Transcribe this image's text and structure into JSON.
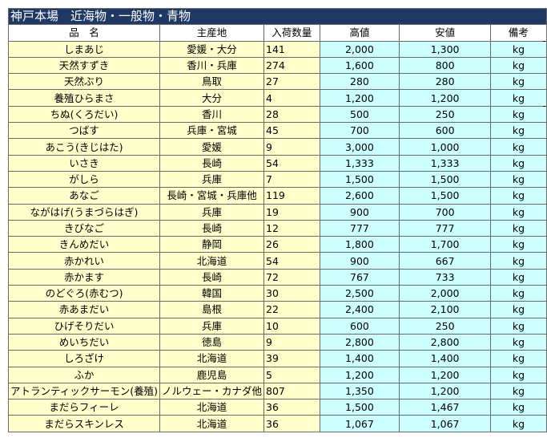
{
  "title": "神戸本場　近海物・一般物・青物",
  "headers": [
    "品　名",
    "主産地",
    "入荷数量",
    "高値",
    "安値",
    "備考"
  ],
  "rows": [
    [
      "しまあじ",
      "愛媛・大分",
      "141",
      "2,000",
      "1,300",
      "kg"
    ],
    [
      "天然すずき",
      "香川・兵庫",
      "274",
      "1,600",
      "800",
      "kg"
    ],
    [
      "天然ぶり",
      "鳥取",
      "27",
      "280",
      "280",
      "kg"
    ],
    [
      "養殖ひらまさ",
      "大分",
      "4",
      "1,200",
      "1,200",
      "kg"
    ],
    [
      "ちぬ(くろだい)",
      "香川",
      "28",
      "500",
      "250",
      "kg"
    ],
    [
      "つばす",
      "兵庫・宮城",
      "45",
      "700",
      "600",
      "kg"
    ],
    [
      "あこう(きじはた)",
      "愛媛",
      "9",
      "3,000",
      "1,000",
      "kg"
    ],
    [
      "いさき",
      "長崎",
      "54",
      "1,333",
      "1,333",
      "kg"
    ],
    [
      "がしら",
      "兵庫",
      "7",
      "1,500",
      "1,500",
      "kg"
    ],
    [
      "あなご",
      "長崎・宮城・兵庫他",
      "119",
      "2,600",
      "1,500",
      "kg"
    ],
    [
      "ながはげ(うまづらはぎ)",
      "兵庫",
      "19",
      "900",
      "700",
      "kg"
    ],
    [
      "きびなご",
      "長崎",
      "12",
      "777",
      "777",
      "kg"
    ],
    [
      "きんめだい",
      "静岡",
      "26",
      "1,800",
      "1,700",
      "kg"
    ],
    [
      "赤かれい",
      "北海道",
      "54",
      "900",
      "667",
      "kg"
    ],
    [
      "赤かます",
      "長崎",
      "72",
      "767",
      "733",
      "kg"
    ],
    [
      "のどぐろ(赤むつ)",
      "韓国",
      "30",
      "2,500",
      "2,000",
      "kg"
    ],
    [
      "赤あまだい",
      "島根",
      "22",
      "2,400",
      "2,100",
      "kg"
    ],
    [
      "ひげそりだい",
      "兵庫",
      "10",
      "600",
      "250",
      "kg"
    ],
    [
      "めいちだい",
      "徳島",
      "9",
      "2,800",
      "2,800",
      "kg"
    ],
    [
      "しろざけ",
      "北海道",
      "39",
      "1,400",
      "1,400",
      "kg"
    ],
    [
      "ふか",
      "鹿児島",
      "5",
      "1,200",
      "1,200",
      "kg"
    ],
    [
      "アトランティックサーモン(養殖)",
      "ノルウェー・カナダ他",
      "807",
      "1,350",
      "1,200",
      "kg"
    ],
    [
      "まだらフィーレ",
      "北海道",
      "36",
      "1,500",
      "1,467",
      "kg"
    ],
    [
      "まだらスキンレス",
      "北海道",
      "36",
      "1,067",
      "1,067",
      "kg"
    ]
  ]
}
